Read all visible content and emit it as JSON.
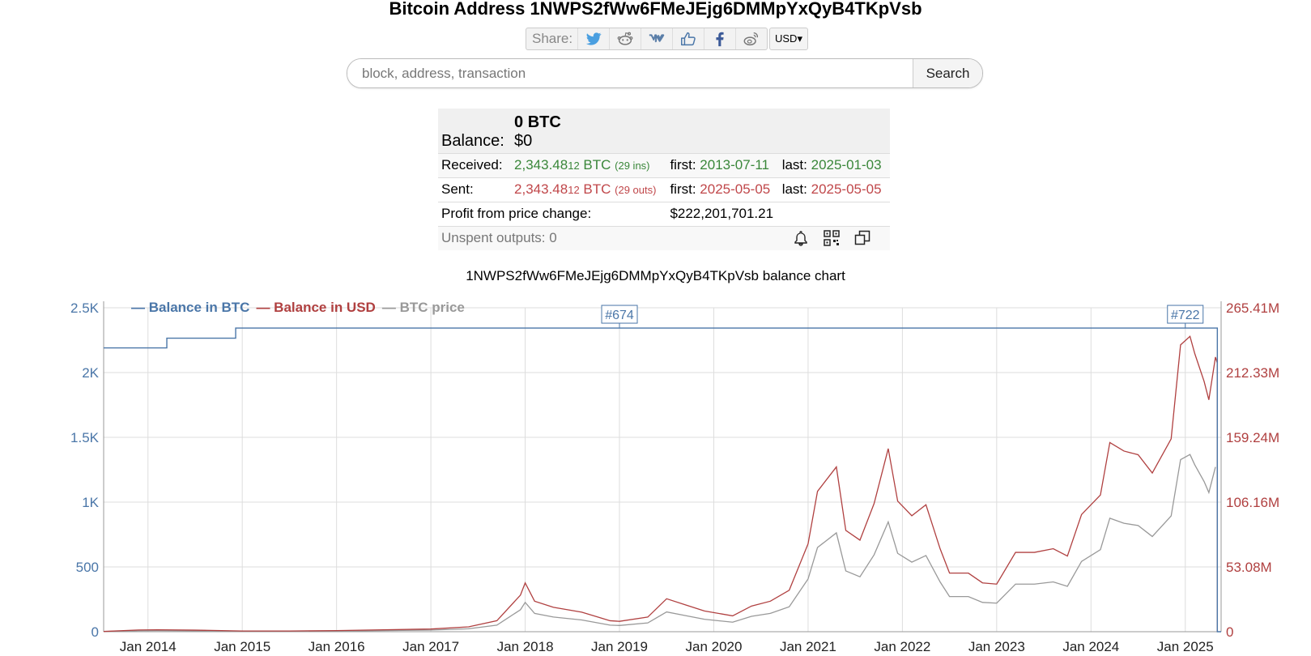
{
  "page": {
    "title": "Bitcoin Address 1NWPS2fWw6FMeJEjg6DMMpYxQyB4TKpVsb"
  },
  "share": {
    "label": "Share:",
    "icons": [
      "twitter-icon",
      "reddit-icon",
      "vk-icon",
      "like-icon",
      "facebook-icon",
      "weibo-icon"
    ],
    "currency": "USD"
  },
  "search": {
    "placeholder": "block, address, transaction",
    "button": "Search"
  },
  "summary": {
    "balance_label": "Balance:",
    "balance_btc": "0 BTC",
    "balance_usd": "$0",
    "received_label": "Received:",
    "received_amount": "2,343.48",
    "received_small": "12",
    "received_unit": "BTC",
    "received_count": "(29 ins)",
    "received_first_label": "first:",
    "received_first": "2013-07-11",
    "received_last_label": "last:",
    "received_last": "2025-01-03",
    "sent_label": "Sent:",
    "sent_amount": "2,343.48",
    "sent_small": "12",
    "sent_unit": "BTC",
    "sent_count": "(29 outs)",
    "sent_first_label": "first:",
    "sent_first": "2025-05-05",
    "sent_last_label": "last:",
    "sent_last": "2025-05-05",
    "profit_label": "Profit from price change:",
    "profit_value": "$222,201,701.21",
    "unspent_label": "Unspent outputs: 0"
  },
  "chart_data": {
    "type": "line",
    "title": "1NWPS2fWw6FMeJEjg6DMMpYxQyB4TKpVsb balance chart",
    "legend": [
      "Balance in BTC",
      "Balance in USD",
      "BTC price"
    ],
    "colors": {
      "btc": "#4a76a8",
      "usd": "#b04040",
      "price": "#999999"
    },
    "x_ticks": [
      "Jan 2014",
      "Jan 2015",
      "Jan 2016",
      "Jan 2017",
      "Jan 2018",
      "Jan 2019",
      "Jan 2020",
      "Jan 2021",
      "Jan 2022",
      "Jan 2023",
      "Jan 2024",
      "Jan 2025"
    ],
    "y_left_ticks": [
      "0",
      "500",
      "1K",
      "1.5K",
      "2K",
      "2.5K"
    ],
    "y_right_ticks": [
      "0",
      "53.08M",
      "106.16M",
      "159.24M",
      "212.33M",
      "265.41M"
    ],
    "y_left_range": [
      0,
      2500
    ],
    "y_right_range": [
      0,
      265410000
    ],
    "x_range": [
      2013.53,
      2025.38
    ],
    "annotations": [
      {
        "label": "#674",
        "x": 2019.0
      },
      {
        "label": "#722",
        "x": 2025.0
      }
    ],
    "btc_balance": [
      {
        "x": 2013.53,
        "y": 2190
      },
      {
        "x": 2014.2,
        "y": 2190
      },
      {
        "x": 2014.2,
        "y": 2265
      },
      {
        "x": 2014.93,
        "y": 2265
      },
      {
        "x": 2014.93,
        "y": 2343.48
      },
      {
        "x": 2025.34,
        "y": 2343.48
      },
      {
        "x": 2025.34,
        "y": 0
      },
      {
        "x": 2025.38,
        "y": 0
      }
    ],
    "usd_balance": [
      [
        2013.53,
        0.2
      ],
      [
        2013.9,
        1.4
      ],
      [
        2014.1,
        1.6
      ],
      [
        2014.5,
        1.3
      ],
      [
        2015.0,
        0.6
      ],
      [
        2015.5,
        0.6
      ],
      [
        2016.0,
        0.9
      ],
      [
        2016.5,
        1.6
      ],
      [
        2017.0,
        2.2
      ],
      [
        2017.4,
        4
      ],
      [
        2017.7,
        9
      ],
      [
        2017.95,
        30
      ],
      [
        2018.0,
        40
      ],
      [
        2018.1,
        25
      ],
      [
        2018.3,
        20
      ],
      [
        2018.6,
        16
      ],
      [
        2018.9,
        9
      ],
      [
        2019.0,
        8.5
      ],
      [
        2019.3,
        12
      ],
      [
        2019.5,
        27
      ],
      [
        2019.7,
        22
      ],
      [
        2019.9,
        17
      ],
      [
        2020.2,
        13
      ],
      [
        2020.4,
        21
      ],
      [
        2020.6,
        25
      ],
      [
        2020.8,
        34
      ],
      [
        2021.0,
        72
      ],
      [
        2021.1,
        115
      ],
      [
        2021.3,
        135
      ],
      [
        2021.4,
        83
      ],
      [
        2021.55,
        75
      ],
      [
        2021.7,
        105
      ],
      [
        2021.85,
        150
      ],
      [
        2021.95,
        107
      ],
      [
        2022.1,
        95
      ],
      [
        2022.25,
        104
      ],
      [
        2022.4,
        68
      ],
      [
        2022.5,
        48
      ],
      [
        2022.7,
        48
      ],
      [
        2022.85,
        40
      ],
      [
        2023.0,
        39
      ],
      [
        2023.2,
        65
      ],
      [
        2023.4,
        65
      ],
      [
        2023.6,
        68
      ],
      [
        2023.75,
        62
      ],
      [
        2023.9,
        96
      ],
      [
        2024.1,
        112
      ],
      [
        2024.2,
        155
      ],
      [
        2024.35,
        148
      ],
      [
        2024.5,
        145
      ],
      [
        2024.65,
        130
      ],
      [
        2024.85,
        158
      ],
      [
        2024.95,
        235
      ],
      [
        2025.05,
        242
      ],
      [
        2025.1,
        228
      ],
      [
        2025.2,
        205
      ],
      [
        2025.25,
        190
      ],
      [
        2025.32,
        225
      ],
      [
        2025.34,
        220
      ],
      [
        2025.34,
        0
      ]
    ]
  }
}
